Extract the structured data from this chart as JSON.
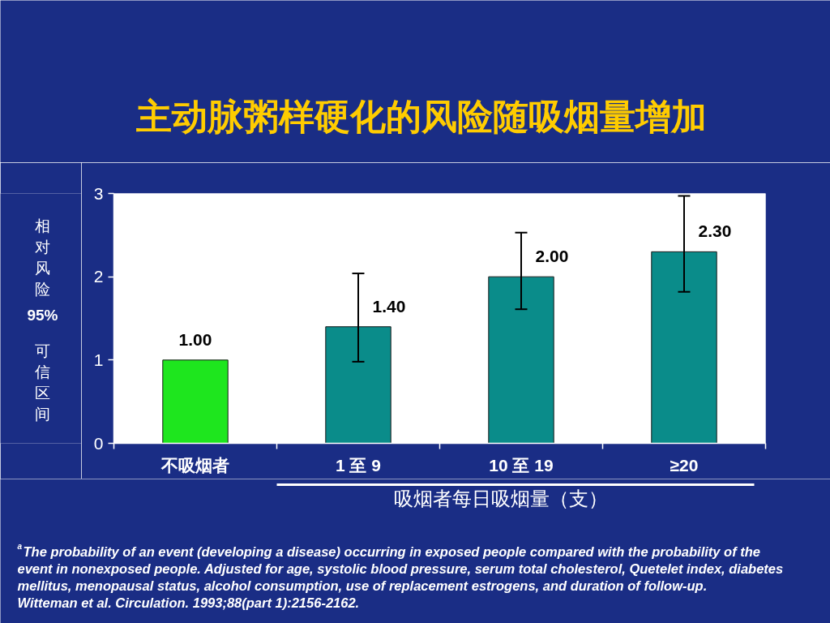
{
  "chart_data": {
    "type": "bar",
    "title": "主动脉粥样硬化的风险随吸烟量增加",
    "ylabel": "相对风险 95% 可信区间",
    "xlabel": "吸烟者每日吸烟量（支）",
    "categories": [
      "不吸烟者",
      "1 至 9",
      "10 至 19",
      "≥20"
    ],
    "values": [
      1.0,
      1.4,
      2.0,
      2.3
    ],
    "colors": [
      "#1ee61e",
      "#0a8c8a",
      "#0a8c8a",
      "#0a8c8a"
    ],
    "errors": [
      null,
      [
        0.98,
        2.04
      ],
      [
        1.61,
        2.53
      ],
      [
        1.82,
        2.97
      ]
    ],
    "value_labels": [
      "1.00",
      "1.40",
      "2.00",
      "2.30"
    ],
    "ylim": [
      0,
      3
    ],
    "yticks": [
      0,
      1,
      2,
      3
    ],
    "annotations": [
      "$^{a}$The probability of an event (developing a disease) occurring in exposed people compared with the probability of the event in nonexposed people. Adjusted for age, systolic blood pressure, serum total cholesterol, Quetelet index, diabetes mellitus, menopausal status, alcohol consumption, use of replacement estrogens, and duration of follow-up.",
      "Witteman et al. Circulation. 1993;88(part 1):2156-2162."
    ]
  }
}
